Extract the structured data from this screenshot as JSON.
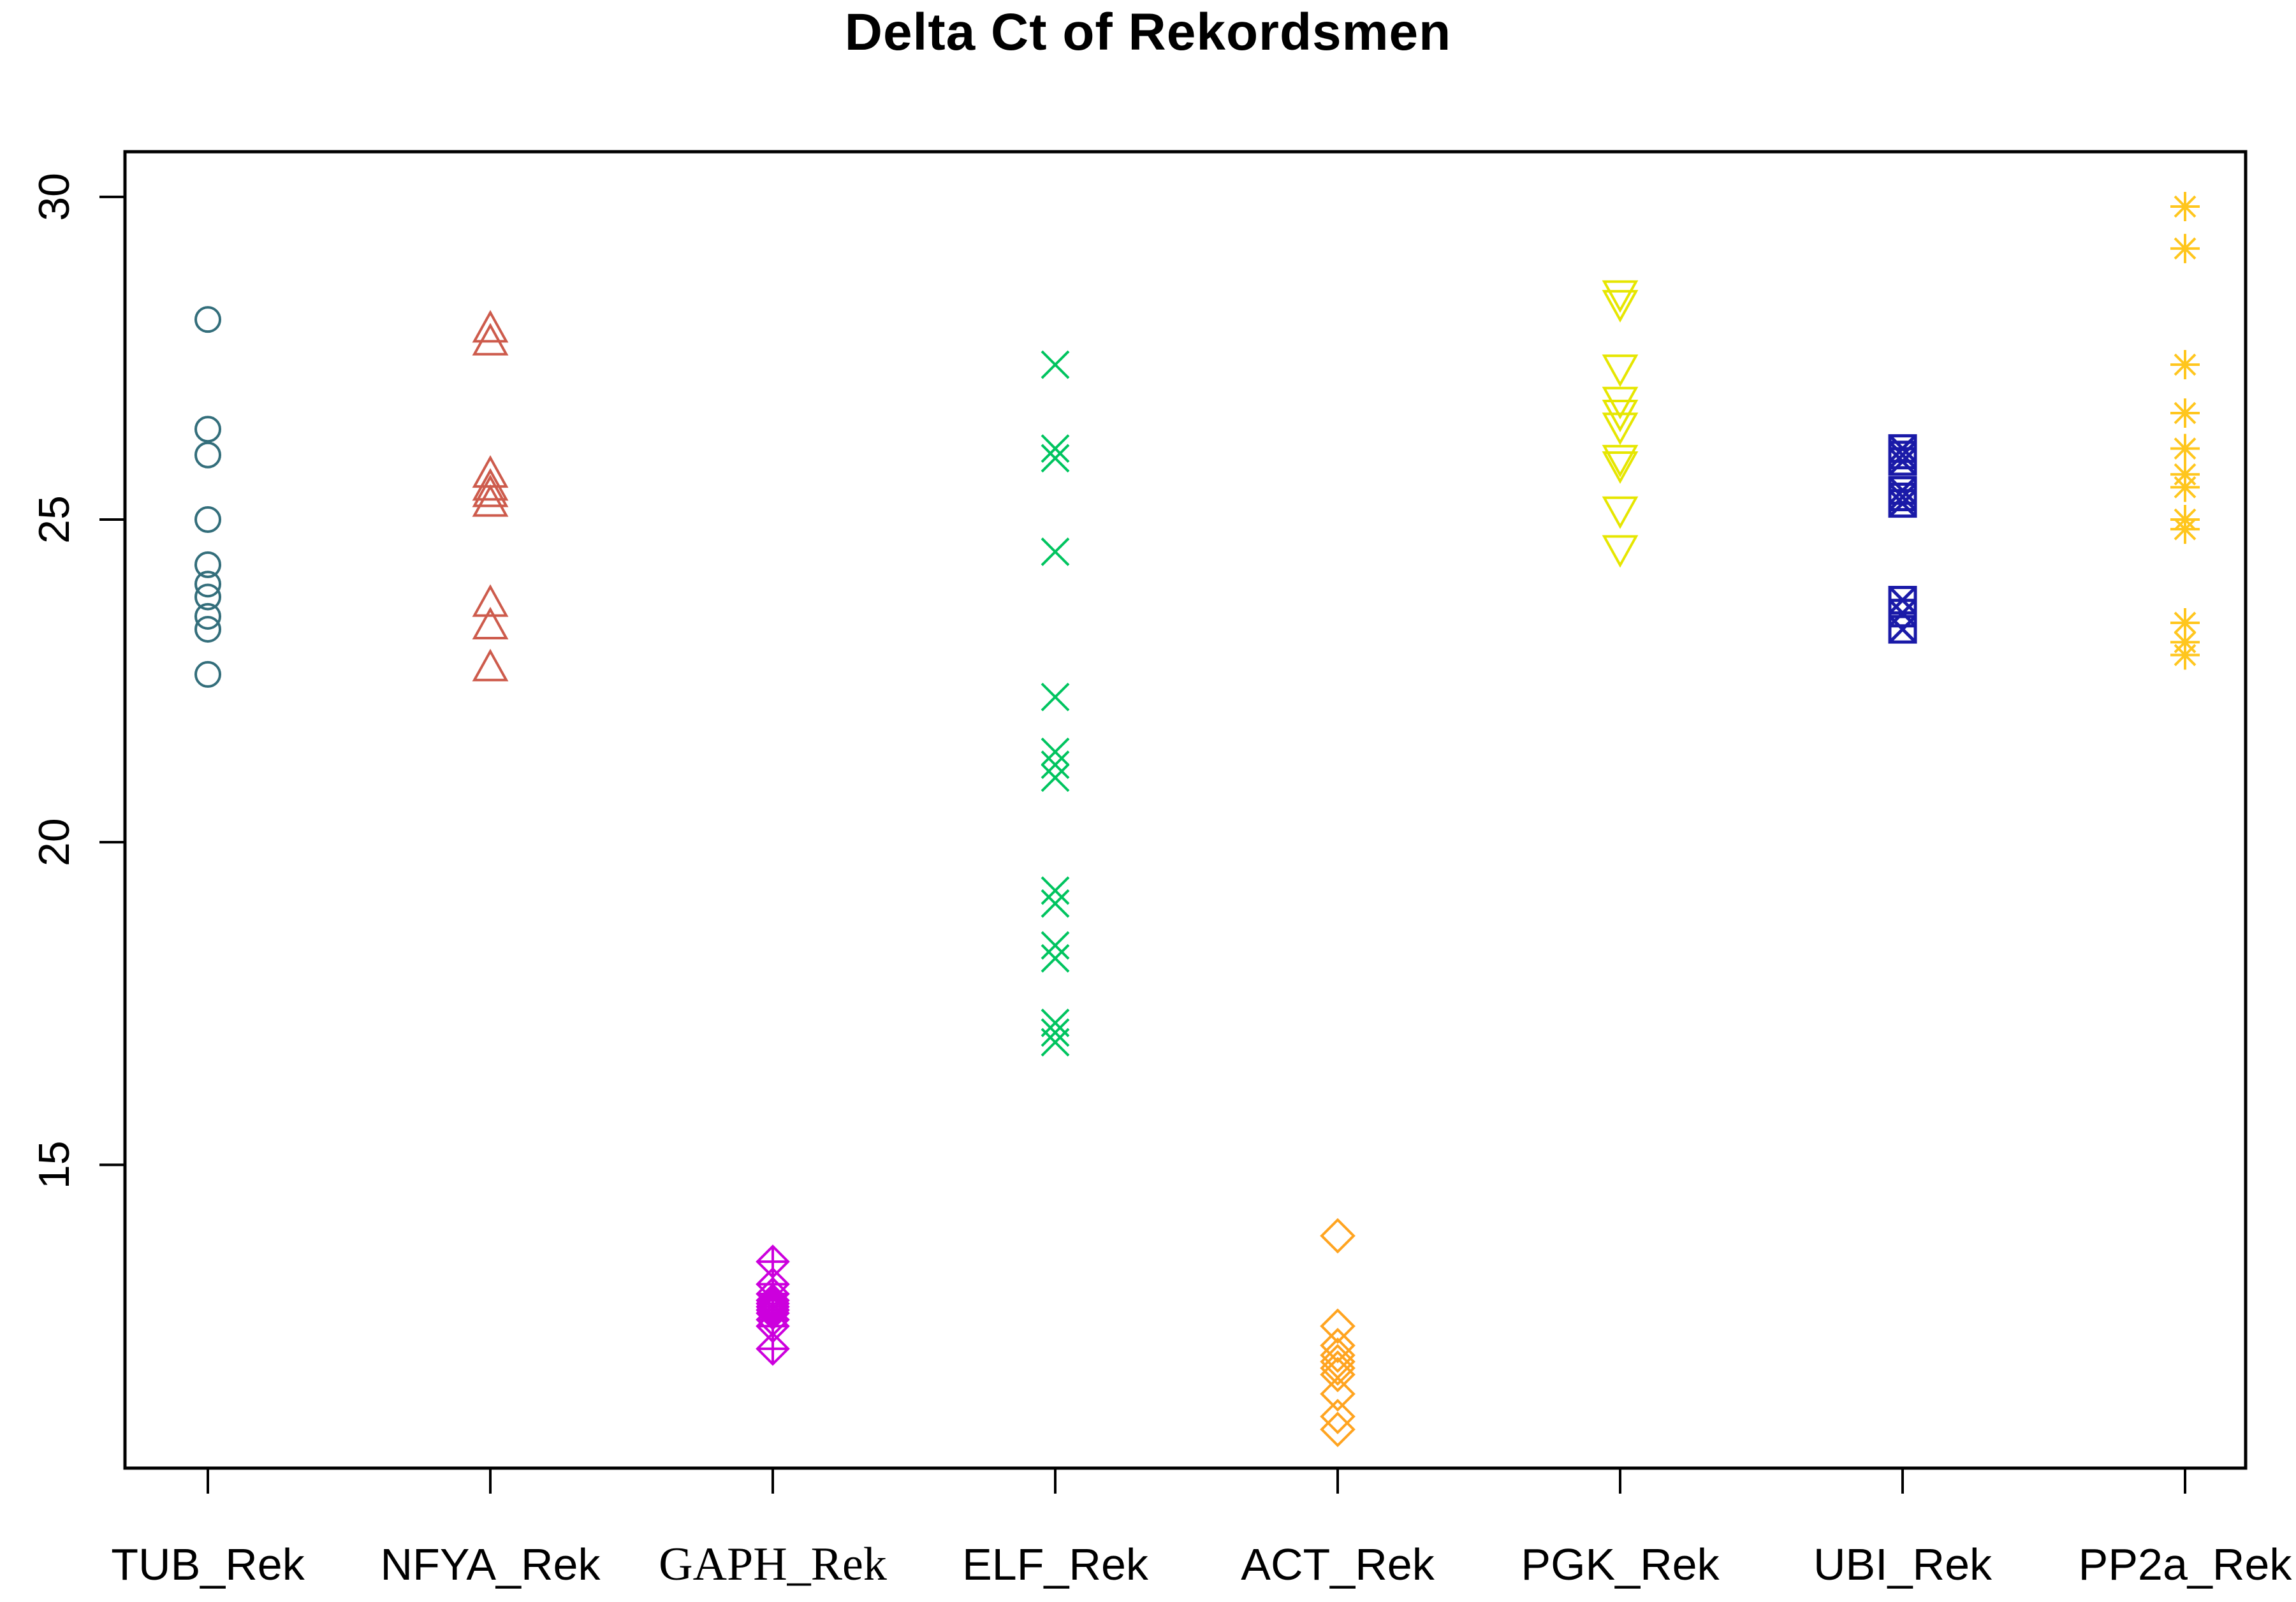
{
  "page": {
    "title": "Delta Ct of Rekordsmen"
  },
  "chart_data": {
    "type": "scatter",
    "title": "Delta Ct of Rekordsmen",
    "subtitle": "",
    "xlabel": "",
    "ylabel": "",
    "ylim": [
      10.3,
      30.7
    ],
    "yticks": [
      15,
      20,
      25,
      30
    ],
    "grid": false,
    "legend_position": "none",
    "axis_color": "#000000",
    "background_color": "#ffffff",
    "categories": [
      "TUB_Rek",
      "NFYA_Rek",
      "GAPH_Rek",
      "ELF_Rek",
      "ACT_Rek",
      "PGK_Rek",
      "UBI_Rek",
      "PP2a_Rek"
    ],
    "series": [
      {
        "name": "TUB_Rek",
        "marker": "circle",
        "color": "#336E7B",
        "values": [
          28.1,
          26.4,
          26.0,
          25.0,
          24.3,
          24.0,
          23.8,
          23.5,
          23.3,
          22.6
        ]
      },
      {
        "name": "NFYA_Rek",
        "marker": "triangle-up",
        "color": "#CD5B4C",
        "values": [
          27.95,
          27.75,
          25.7,
          25.5,
          25.4,
          25.25,
          23.7,
          23.35,
          22.7
        ]
      },
      {
        "name": "GAPH_Rek",
        "marker": "diamond-plus",
        "color": "#CC00DD",
        "values": [
          13.5,
          13.15,
          13.0,
          12.9,
          12.85,
          12.8,
          12.75,
          12.7,
          12.6,
          12.5,
          12.15
        ]
      },
      {
        "name": "ELF_Rek",
        "marker": "x-cross",
        "color": "#00C45F",
        "values": [
          27.4,
          26.1,
          25.95,
          24.5,
          22.25,
          21.4,
          21.2,
          21.0,
          19.25,
          19.05,
          18.4,
          18.2,
          17.2,
          17.05,
          16.9
        ]
      },
      {
        "name": "ACT_Rek",
        "marker": "diamond",
        "color": "#FFA420",
        "values": [
          13.9,
          12.5,
          12.2,
          12.05,
          11.95,
          11.85,
          11.75,
          11.45,
          11.1,
          10.9
        ]
      },
      {
        "name": "PGK_Rek",
        "marker": "triangle-down",
        "color": "#E6E600",
        "values": [
          28.5,
          28.35,
          27.35,
          26.85,
          26.65,
          26.45,
          25.95,
          25.85,
          25.15,
          24.55
        ]
      },
      {
        "name": "UBI_Rek",
        "marker": "square-x",
        "color": "#1A1AA8",
        "values": [
          26.1,
          26.0,
          25.9,
          25.45,
          25.35,
          25.25,
          23.75,
          23.55,
          23.3
        ]
      },
      {
        "name": "PP2a_Rek",
        "marker": "asterisk",
        "color": "#FFC61E",
        "values": [
          29.85,
          29.2,
          27.4,
          26.65,
          26.1,
          25.7,
          25.5,
          25.0,
          24.85,
          23.4,
          23.1,
          22.9
        ]
      }
    ]
  }
}
